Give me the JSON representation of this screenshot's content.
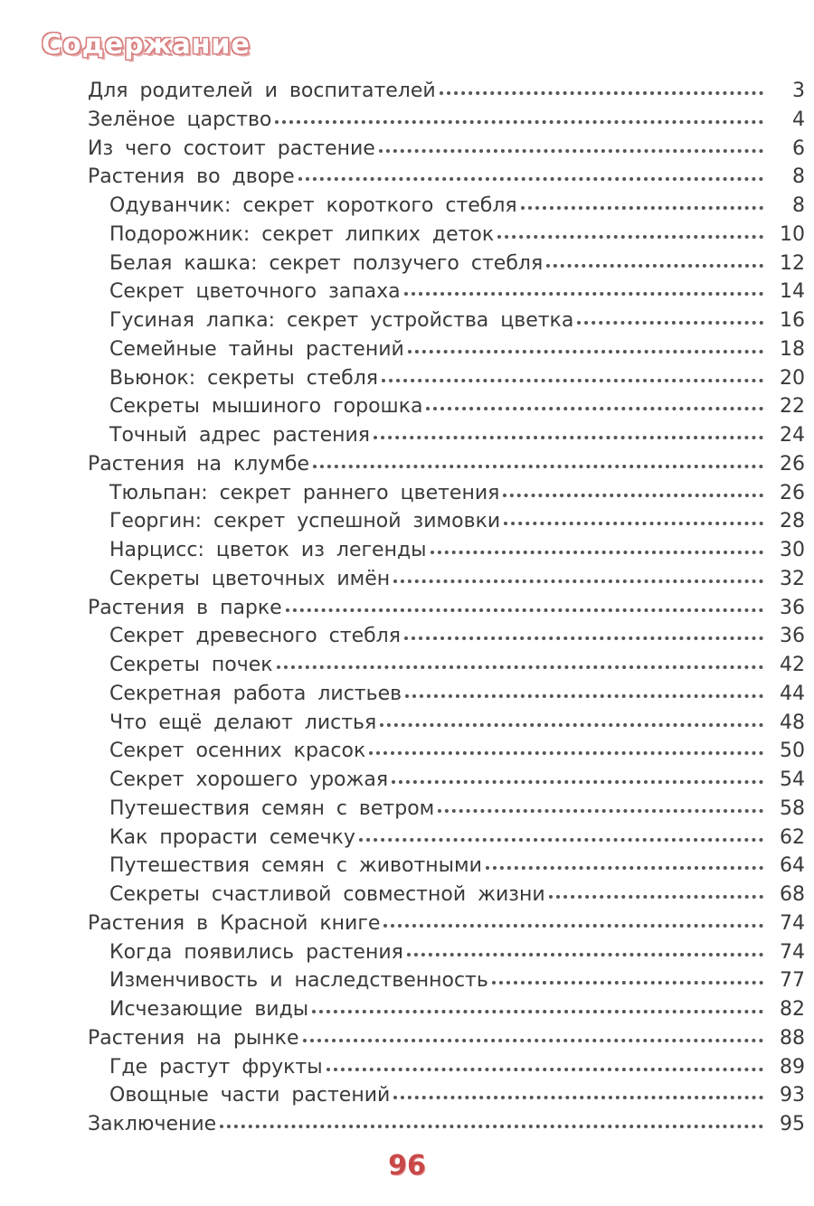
{
  "title": "Содержание",
  "entries": [
    {
      "label": "Для родителей и воспитателей",
      "page": "3",
      "level": 1
    },
    {
      "label": "Зелёное царство",
      "page": "4",
      "level": 1
    },
    {
      "label": "Из чего состоит растение",
      "page": "6",
      "level": 1
    },
    {
      "label": "Растения во дворе",
      "page": "8",
      "level": 1
    },
    {
      "label": "Одуванчик: секрет короткого стебля",
      "page": "8",
      "level": 2
    },
    {
      "label": "Подорожник: секрет липких деток",
      "page": "10",
      "level": 2
    },
    {
      "label": "Белая кашка: секрет ползучего стебля",
      "page": "12",
      "level": 2
    },
    {
      "label": "Секрет цветочного запаха",
      "page": "14",
      "level": 2
    },
    {
      "label": "Гусиная лапка: секрет устройства цветка",
      "page": "16",
      "level": 2
    },
    {
      "label": "Семейные тайны растений",
      "page": "18",
      "level": 2
    },
    {
      "label": "Вьюнок: секреты стебля",
      "page": "20",
      "level": 2
    },
    {
      "label": "Секреты мышиного горошка",
      "page": "22",
      "level": 2
    },
    {
      "label": "Точный адрес растения",
      "page": "24",
      "level": 2
    },
    {
      "label": "Растения на клумбе",
      "page": "26",
      "level": 1
    },
    {
      "label": "Тюльпан: секрет раннего цветения",
      "page": "26",
      "level": 2
    },
    {
      "label": "Георгин: секрет успешной зимовки",
      "page": "28",
      "level": 2
    },
    {
      "label": "Нарцисс: цветок из легенды",
      "page": "30",
      "level": 2
    },
    {
      "label": "Секреты цветочных имён",
      "page": "32",
      "level": 2
    },
    {
      "label": "Растения в парке",
      "page": "36",
      "level": 1
    },
    {
      "label": "Секрет древесного стебля",
      "page": "36",
      "level": 2
    },
    {
      "label": "Секреты почек",
      "page": "42",
      "level": 2
    },
    {
      "label": "Секретная работа листьев",
      "page": "44",
      "level": 2
    },
    {
      "label": "Что ещё делают листья",
      "page": "48",
      "level": 2
    },
    {
      "label": "Секрет осенних красок",
      "page": "50",
      "level": 2
    },
    {
      "label": "Секрет хорошего урожая",
      "page": "54",
      "level": 2
    },
    {
      "label": "Путешествия семян с ветром",
      "page": "58",
      "level": 2
    },
    {
      "label": "Как прорасти семечку",
      "page": "62",
      "level": 2
    },
    {
      "label": "Путешествия семян с животными",
      "page": "64",
      "level": 2
    },
    {
      "label": "Секреты счастливой совместной жизни",
      "page": "68",
      "level": 2
    },
    {
      "label": "Растения в Красной книге",
      "page": "74",
      "level": 1
    },
    {
      "label": "Когда появились растения",
      "page": "74",
      "level": 2
    },
    {
      "label": "Изменчивость и наследственность",
      "page": "77",
      "level": 2
    },
    {
      "label": "Исчезающие виды",
      "page": "82",
      "level": 2
    },
    {
      "label": "Растения на рынке",
      "page": "88",
      "level": 1
    },
    {
      "label": "Где растут фрукты",
      "page": "89",
      "level": 2
    },
    {
      "label": "Овощные части растений",
      "page": "93",
      "level": 2
    },
    {
      "label": "Заключение",
      "page": "95",
      "level": 1
    }
  ],
  "page_number": "96",
  "colors": {
    "title_outline": "#d98080",
    "page_number": "#c84848",
    "text": "#3a3a3a"
  }
}
